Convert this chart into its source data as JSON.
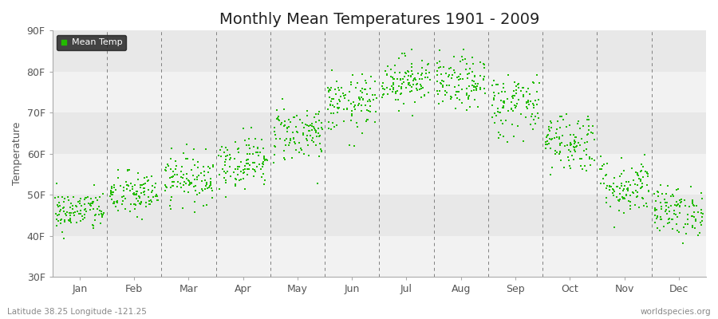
{
  "title": "Monthly Mean Temperatures 1901 - 2009",
  "ylabel": "Temperature",
  "xlabel_note": "Latitude 38.25 Longitude -121.25",
  "watermark": "worldspecies.org",
  "ylim": [
    30,
    90
  ],
  "yticks": [
    30,
    40,
    50,
    60,
    70,
    80,
    90
  ],
  "ytick_labels": [
    "30F",
    "40F",
    "50F",
    "60F",
    "70F",
    "80F",
    "90F"
  ],
  "months": [
    "Jan",
    "Feb",
    "Mar",
    "Apr",
    "May",
    "Jun",
    "Jul",
    "Aug",
    "Sep",
    "Oct",
    "Nov",
    "Dec"
  ],
  "dot_color": "#22bb00",
  "background_color": "#ffffff",
  "plot_bg_color": "#f2f2f2",
  "band_colors": [
    "#f2f2f2",
    "#e8e8e8"
  ],
  "legend_label": "Mean Temp",
  "legend_bg": "#1a1a1a",
  "legend_fg": "#ffffff",
  "title_fontsize": 14,
  "label_fontsize": 9,
  "tick_fontsize": 9,
  "monthly_means": [
    46.0,
    50.0,
    54.0,
    58.0,
    65.0,
    72.0,
    78.0,
    77.0,
    72.0,
    63.0,
    52.0,
    46.0
  ],
  "monthly_stds": [
    2.5,
    2.8,
    3.0,
    3.2,
    3.5,
    3.5,
    3.0,
    3.2,
    4.0,
    3.8,
    3.5,
    3.0
  ],
  "n_years": 109,
  "seed": 42,
  "dashed_line_color": "#808080",
  "vline_positions": [
    1,
    2,
    3,
    4,
    5,
    6,
    7,
    8,
    9,
    10,
    11
  ]
}
